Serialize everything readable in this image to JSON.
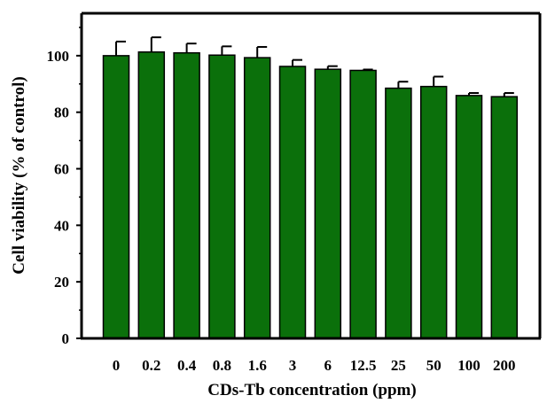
{
  "chart_data": {
    "type": "bar",
    "categories": [
      "0",
      "0.2",
      "0.4",
      "0.8",
      "1.6",
      "3",
      "6",
      "12.5",
      "25",
      "50",
      "100",
      "200"
    ],
    "values": [
      100,
      101.3,
      101,
      100.2,
      99.3,
      96.2,
      95.2,
      94.8,
      88.5,
      89.1,
      85.9,
      85.5
    ],
    "errors": [
      5,
      5.2,
      3.3,
      3.1,
      3.8,
      2.3,
      1.1,
      0.3,
      2.3,
      3.5,
      0.9,
      1.3
    ],
    "xlabel": "CDs-Tb concentration (ppm)",
    "ylabel": "Cell viability (% of control)",
    "ylim": [
      0,
      115
    ],
    "yticks": [
      0,
      20,
      40,
      60,
      80,
      100
    ],
    "grid": false,
    "bar_color": "#0b700b",
    "bar_edge_color": "#000000"
  }
}
